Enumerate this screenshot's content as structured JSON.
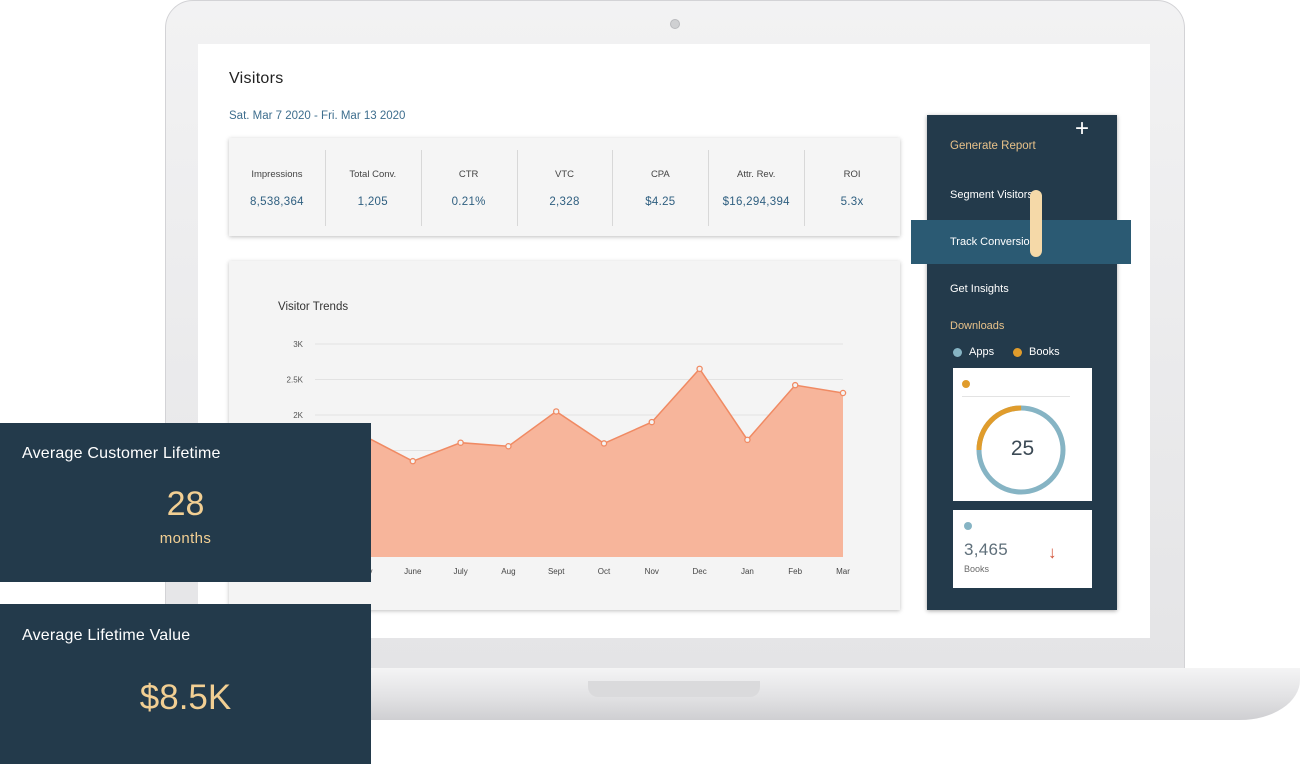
{
  "page": {
    "title": "Visitors",
    "date_range": "Sat. Mar 7 2020 - Fri. Mar 13 2020"
  },
  "stats": [
    {
      "label": "Impressions",
      "value": "8,538,364"
    },
    {
      "label": "Total Conv.",
      "value": "1,205"
    },
    {
      "label": "CTR",
      "value": "0.21%"
    },
    {
      "label": "VTC",
      "value": "2,328"
    },
    {
      "label": "CPA",
      "value": "$4.25"
    },
    {
      "label": "Attr. Rev.",
      "value": "$16,294,394"
    },
    {
      "label": "ROI",
      "value": "5.3x"
    }
  ],
  "chart_data": {
    "type": "area",
    "title": "Visitor Trends",
    "categories": [
      "May",
      "June",
      "July",
      "Aug",
      "Sept",
      "Oct",
      "Nov",
      "Dec",
      "Jan",
      "Feb",
      "Mar"
    ],
    "values": [
      1700,
      1350,
      1610,
      1560,
      2050,
      1600,
      1900,
      2650,
      1650,
      2420,
      2310
    ],
    "ylim": [
      0,
      3000
    ],
    "yticks": [
      "3K",
      "2.5K",
      "2K"
    ],
    "grid": true,
    "color": "#f7b59b",
    "line_color": "#f08a63"
  },
  "side_panel": {
    "menu": {
      "generate_report": "Generate Report",
      "segment_visitors": "Segment Visitors",
      "track_conversions": "Track Conversions",
      "get_insights": "Get Insights"
    },
    "downloads": {
      "title": "Downloads",
      "legend": {
        "apps": "Apps",
        "books": "Books"
      },
      "donut_value": "25",
      "donut_fraction_books": 0.25,
      "books_count": "3,465",
      "books_label": "Books"
    },
    "colors": {
      "apps": "#86b4c4",
      "books": "#e09c2c",
      "accent_text": "#e8c28a"
    }
  },
  "overlays": {
    "lifetime": {
      "title": "Average Customer Lifetime",
      "value": "28",
      "unit": "months"
    },
    "value": {
      "title": "Average Lifetime Value",
      "value": "$8.5K"
    }
  }
}
